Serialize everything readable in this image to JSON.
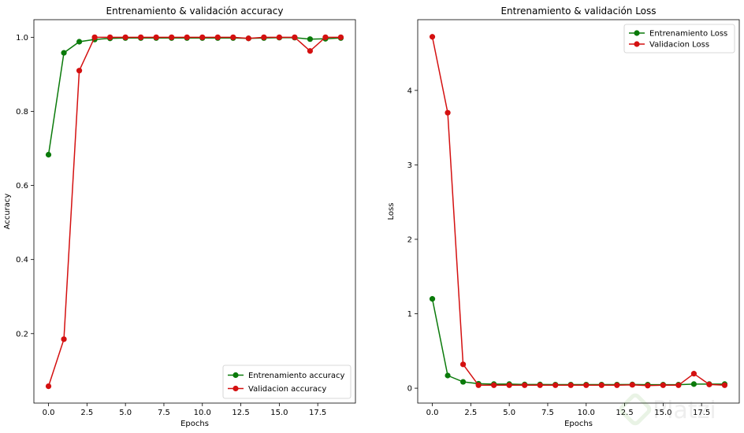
{
  "chart_data": [
    {
      "type": "line",
      "title": "Entrenamiento & validación accuracy",
      "xlabel": "Epochs",
      "ylabel": "Accuracy",
      "xlim": [
        -0.95,
        19.95
      ],
      "ylim": [
        0.0125,
        1.0475
      ],
      "xticks": [
        "0.0",
        "2.5",
        "5.0",
        "7.5",
        "10.0",
        "12.5",
        "15.0",
        "17.5"
      ],
      "yticks": [
        "0.2",
        "0.4",
        "0.6",
        "0.8",
        "1.0"
      ],
      "grid": false,
      "legend_position": "lower-right",
      "x": [
        0,
        1,
        2,
        3,
        4,
        5,
        6,
        7,
        8,
        9,
        10,
        11,
        12,
        13,
        14,
        15,
        16,
        17,
        18,
        19
      ],
      "series": [
        {
          "name": " Entrenamiento accuracy",
          "color": "#0a7a0a",
          "values": [
            0.683,
            0.958,
            0.988,
            0.994,
            0.997,
            0.998,
            0.998,
            0.998,
            0.998,
            0.998,
            0.998,
            0.998,
            0.998,
            0.997,
            0.998,
            0.999,
            0.999,
            0.995,
            0.996,
            0.998
          ]
        },
        {
          "name": "Validacion accuracy",
          "color": "#d41010",
          "values": [
            0.058,
            0.185,
            0.91,
            1.0,
            1.0,
            1.0,
            1.0,
            1.0,
            1.0,
            1.0,
            1.0,
            1.0,
            1.0,
            0.997,
            1.0,
            1.0,
            1.0,
            0.963,
            1.0,
            1.0
          ]
        }
      ]
    },
    {
      "type": "line",
      "title": "Entrenamiento & validación Loss",
      "xlabel": "Epochs",
      "ylabel": "Loss",
      "xlim": [
        -0.95,
        19.95
      ],
      "ylim": [
        -0.2,
        4.95
      ],
      "xticks": [
        "0.0",
        "2.5",
        "5.0",
        "7.5",
        "10.0",
        "12.5",
        "15.0",
        "17.5"
      ],
      "yticks": [
        "0",
        "1",
        "2",
        "3",
        "4"
      ],
      "grid": false,
      "legend_position": "top-right",
      "x": [
        0,
        1,
        2,
        3,
        4,
        5,
        6,
        7,
        8,
        9,
        10,
        11,
        12,
        13,
        14,
        15,
        16,
        17,
        18,
        19
      ],
      "series": [
        {
          "name": " Entrenamiento Loss",
          "color": "#0a7a0a",
          "values": [
            1.2,
            0.17,
            0.085,
            0.06,
            0.055,
            0.055,
            0.05,
            0.05,
            0.048,
            0.048,
            0.048,
            0.048,
            0.048,
            0.05,
            0.047,
            0.047,
            0.047,
            0.055,
            0.055,
            0.055
          ]
        },
        {
          "name": "Validacion Loss",
          "color": "#d41010",
          "values": [
            4.72,
            3.7,
            0.32,
            0.04,
            0.04,
            0.04,
            0.04,
            0.04,
            0.04,
            0.04,
            0.04,
            0.04,
            0.04,
            0.045,
            0.035,
            0.04,
            0.04,
            0.195,
            0.05,
            0.04
          ]
        }
      ]
    }
  ],
  "watermark": "Platzi"
}
